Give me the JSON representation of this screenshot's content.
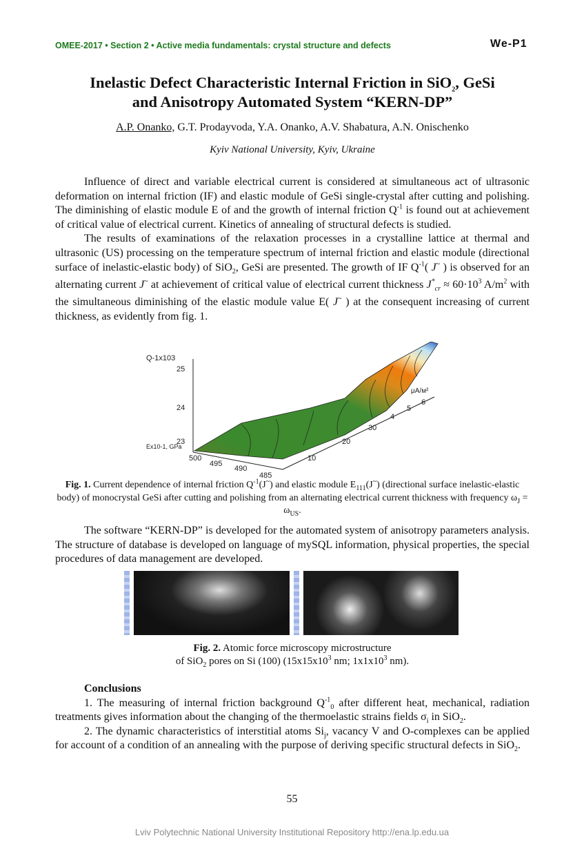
{
  "header": {
    "left": "OMEE-2017 •  Section 2 •  Active media fundamentals: crystal structure and defects",
    "right": "We-P1"
  },
  "title": {
    "line1_a": "Inelastic Defect Characteristic Internal Friction in SiO",
    "line1_sub": "2",
    "line1_b": ", GeSi",
    "line2": "and Anisotropy Automated System “KERN-DP”"
  },
  "authors": {
    "first": "A.P. Onanko,",
    "rest": " G.T. Prodayvoda, Y.A. Onanko, A.V. Shabatura, A.N. Onischenko"
  },
  "affiliation": "Kyiv National University, Kyiv, Ukraine",
  "para1": {
    "a": "Influence of direct and variable electrical current is considered at simultaneous act of ultrasonic deformation on internal friction (IF) and elastic module of GeSi single-crystal after cutting and polishing. The diminishing of elastic module E of and the growth of internal friction Q",
    "sup": "-1",
    "b": " is found out at achievement of critical value of electrical current. Kinetics of annealing of structural defects is studied."
  },
  "para2": {
    "a": "The results of examinations of the relaxation processes in a crystalline lattice at thermal and ultrasonic (US) processing on the temperature spectrum of internal friction and elastic module (directional surface of inelastic-elastic body) of SiO",
    "sub1": "2",
    "b": ", GeSi are presented. The growth of IF Q",
    "sup1": "-1",
    "c": "( ",
    "j1": "J",
    "tilde": "~",
    "d": " ) is observed for an alternating current ",
    "e": " at achievement of critical value of electrical current thickness ",
    "jcr_sub": "cr",
    "jcr_sup": "*",
    "f": " ≈ 60·10",
    "sup3": "3",
    "g": " A/m",
    "sup2": "2",
    "h": " with the simultaneous diminishing of the elastic module value E( ",
    "i": " ) at the consequent increasing of current thickness, as evidently from fig. 1."
  },
  "fig1": {
    "zlabel": "Q-1x103",
    "ylabel": "Ex10-1, GPa",
    "zticks": [
      "25",
      "24",
      "23"
    ],
    "yticks": [
      "500",
      "495",
      "490",
      "485"
    ],
    "xticks": [
      "10",
      "20",
      "30",
      "4",
      "5",
      "6"
    ],
    "xlabel": "μA/м²",
    "colors": {
      "low": "#2f7d24",
      "mid": "#6aa03a",
      "warm": "#e07a10",
      "high": "#f2e6b0",
      "top": "#2a6fd0"
    },
    "caption": {
      "label": "Fig. 1.",
      "a": " Current dependence of internal friction Q",
      "sup1": "-1",
      "b": "(J",
      "sup2": "~",
      "c": ") and elastic module E",
      "sub": "111",
      "d": "(J",
      "sup3": "~",
      "e": ") (directional surface inelastic-elastic body) of monocrystal GeSi after cutting and polishing from an alternating electrical current thickness with frequency ω",
      "sub2": "J",
      "f": " = ω",
      "sub3": "US",
      "g": "."
    }
  },
  "para3": "The software “KERN-DP” is developed for the automated system of anisotropy parameters analysis. The structure of database is developed on language of mySQL information, physical properties, the special procedures of data management are developed.",
  "fig2": {
    "caption": {
      "label": "Fig. 2.",
      "a": " Atomic force microscopy microstructure",
      "b": "of SiO",
      "sub": "2",
      "c": " pores on Si (100) (15x15x10",
      "sup1": "3",
      "d": " nm; 1x1x10",
      "sup2": "3",
      "e": " nm)."
    }
  },
  "conclusions": {
    "heading": "Conclusions",
    "item1": {
      "a": "1. The measuring of internal friction background Q",
      "sup": "-1",
      "sub": "0",
      "b": " after different heat, mechanical, radiation treatments gives information about the changing of the thermoelastic strains fields σ",
      "sub2": "i",
      "c": " in SiO",
      "sub3": "2",
      "d": "."
    },
    "item2": {
      "a": "2. The dynamic characteristics of interstitial atoms Si",
      "sub": "j",
      "b": ", vacancy V and O-complexes can be applied for account of a condition of an annealing with the purpose of deriving specific structural defects in SiO",
      "sub2": "2",
      "c": "."
    }
  },
  "page_number": "55",
  "footer": "Lviv Polytechnic National University Institutional Repository http://ena.lp.edu.ua"
}
